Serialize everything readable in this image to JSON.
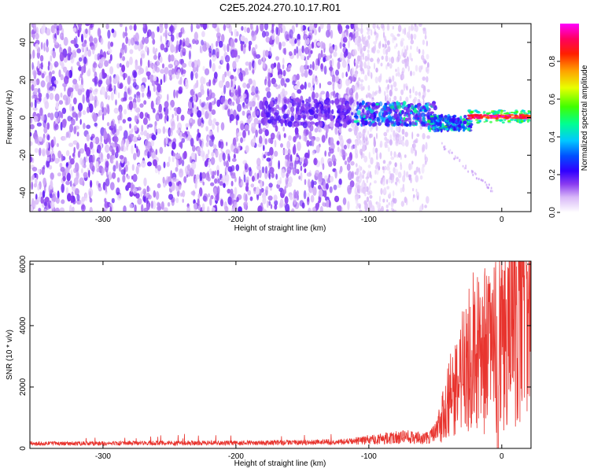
{
  "title": "C2E5.2024.270.10.17.R01",
  "colors": {
    "snr_line": "#e8342e",
    "spectrogram_palette": [
      "#ffffff",
      "#e9d6fb",
      "#c89cf5",
      "#8a3cf0",
      "#5200d8",
      "#0000ff",
      "#00c8ff",
      "#00ff80",
      "#40ff00",
      "#ffff00",
      "#ff8000",
      "#ff0000",
      "#ff00ff"
    ]
  },
  "chart_data": [
    {
      "type": "heatmap",
      "name": "spectrogram",
      "title": "",
      "xlabel": "Height of straight line (km)",
      "ylabel": "Frequency (Hz)",
      "xlim": [
        -355,
        22
      ],
      "ylim": [
        -50,
        50
      ],
      "x_ticks": [
        -300,
        -200,
        -100,
        0
      ],
      "y_ticks": [
        -40,
        -20,
        0,
        20,
        40
      ],
      "colorbar": {
        "label": "Normalized spectral amplitude",
        "range": [
          0,
          1
        ],
        "ticks": [
          "0.0",
          "0.2",
          "0.4",
          "0.6",
          "0.8"
        ]
      },
      "features": [
        {
          "description": "broadband noise",
          "x_range": [
            -355,
            -110
          ],
          "y_range": [
            -50,
            50
          ],
          "amplitude": [
            0.05,
            0.15
          ]
        },
        {
          "description": "noise cluster",
          "x_range": [
            -180,
            -115
          ],
          "y_range": [
            -5,
            10
          ],
          "amplitude": [
            0.12,
            0.2
          ]
        },
        {
          "description": "signal band",
          "x_range": [
            -110,
            -50
          ],
          "y_range": [
            -5,
            8
          ],
          "amplitude": [
            0.15,
            0.45
          ]
        },
        {
          "description": "signal band",
          "x_range": [
            -55,
            -25
          ],
          "y_range": [
            -8,
            2
          ],
          "amplitude": [
            0.2,
            0.5
          ]
        },
        {
          "description": "strong carrier",
          "x_range": [
            -25,
            22
          ],
          "y_range": [
            -1,
            2
          ],
          "amplitude": [
            0.7,
            1.0
          ]
        },
        {
          "description": "faint trace",
          "x_range": [
            -45,
            -5
          ],
          "y_range": [
            -40,
            -15
          ],
          "amplitude": [
            0.05,
            0.1
          ]
        }
      ]
    },
    {
      "type": "line",
      "name": "snr",
      "title": "",
      "xlabel": "Height of straight line (km)",
      "ylabel": "SNR (10 * v/v)",
      "xlim": [
        -355,
        22
      ],
      "ylim": [
        0,
        6100
      ],
      "x_ticks": [
        -300,
        -200,
        -100,
        0
      ],
      "y_ticks": [
        0,
        2000,
        4000,
        6000
      ],
      "trend": [
        {
          "x": -355,
          "y": 160
        },
        {
          "x": -250,
          "y": 170
        },
        {
          "x": -150,
          "y": 190
        },
        {
          "x": -110,
          "y": 230
        },
        {
          "x": -90,
          "y": 320
        },
        {
          "x": -70,
          "y": 380
        },
        {
          "x": -55,
          "y": 330
        },
        {
          "x": -48,
          "y": 600
        },
        {
          "x": -40,
          "y": 1500
        },
        {
          "x": -30,
          "y": 2300
        },
        {
          "x": -20,
          "y": 2800
        },
        {
          "x": -10,
          "y": 3200
        },
        {
          "x": 0,
          "y": 3500
        },
        {
          "x": 10,
          "y": 4600
        },
        {
          "x": 22,
          "y": 5400
        }
      ]
    }
  ]
}
